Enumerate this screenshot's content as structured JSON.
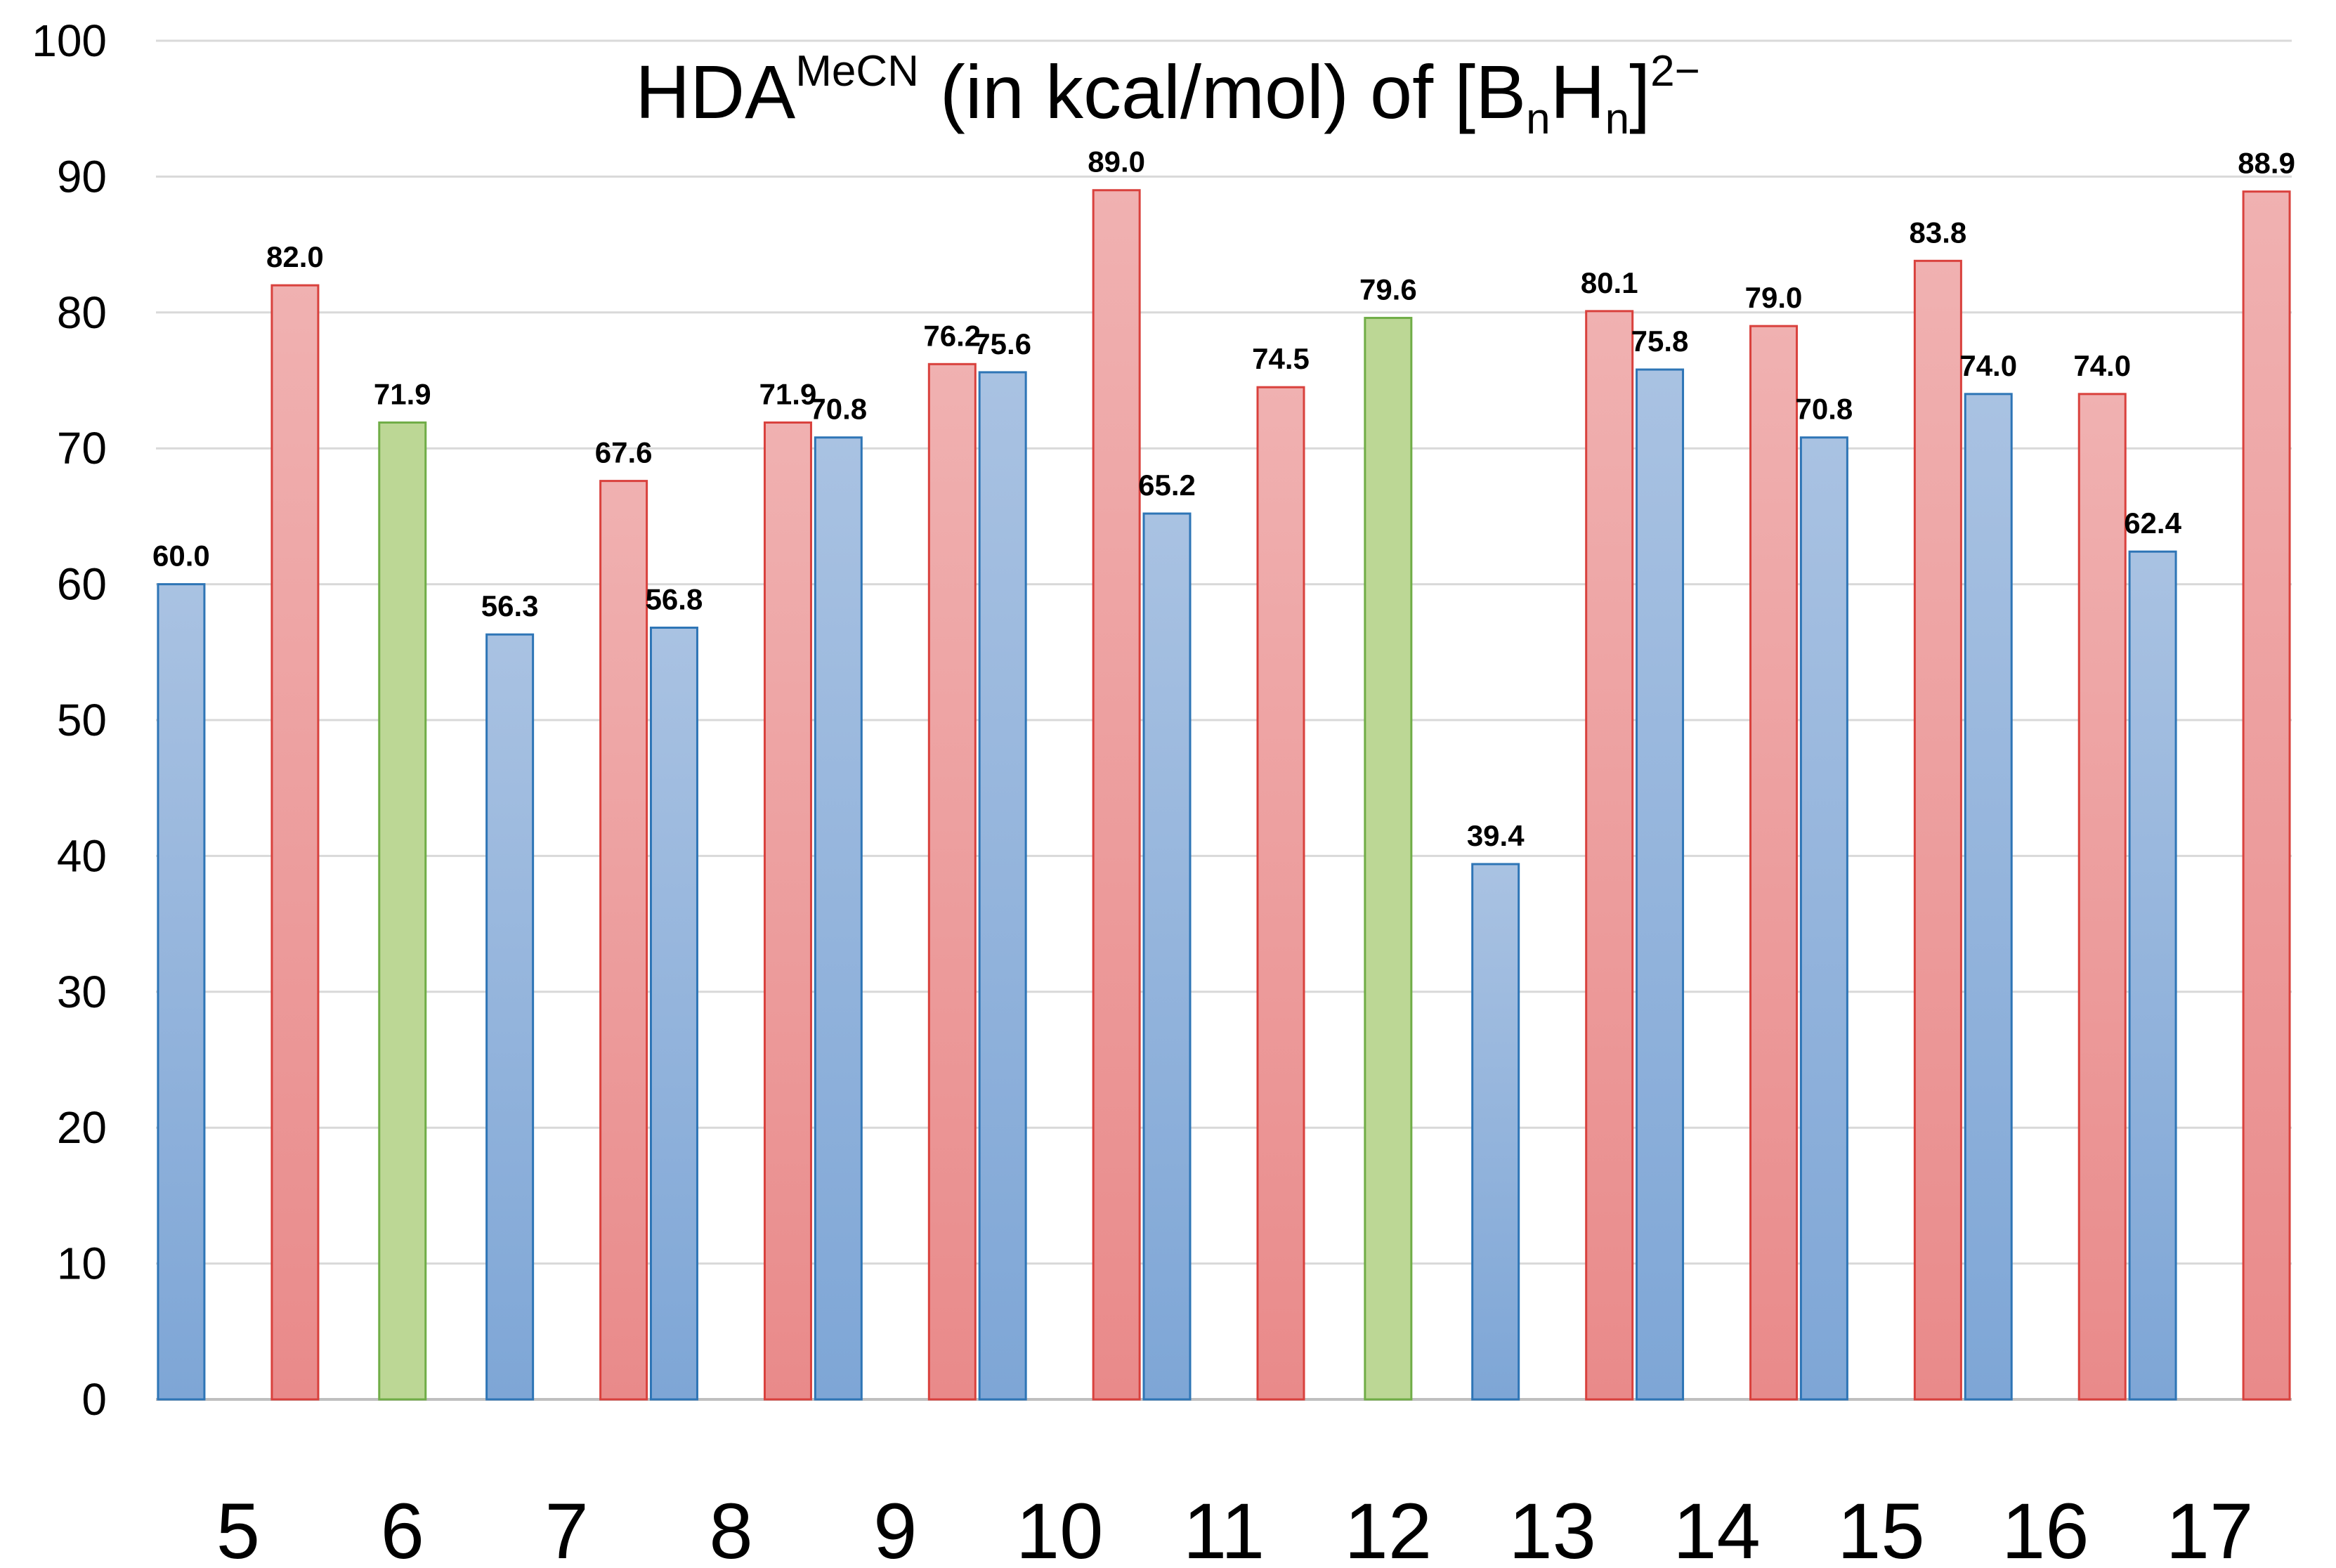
{
  "chart_data": {
    "type": "bar",
    "title": {
      "main": "HDA",
      "superscript": "MeCN",
      "middle": " (in kcal/mol) of [B",
      "sub_n1": "n",
      "h": "H",
      "sub_n2": "n",
      "close": "]",
      "charge": "2−"
    },
    "xlabel": "",
    "ylabel": "",
    "ylim": [
      0,
      100
    ],
    "yticks": [
      0,
      10,
      20,
      30,
      40,
      50,
      60,
      70,
      80,
      90,
      100
    ],
    "grid": true,
    "categories": [
      "5",
      "6",
      "7",
      "8",
      "9",
      "10",
      "11",
      "12",
      "13",
      "14",
      "15",
      "16",
      "17"
    ],
    "series": [
      {
        "name": "blue",
        "values": [
          60.0,
          null,
          56.3,
          56.8,
          70.8,
          75.6,
          65.2,
          null,
          39.4,
          75.8,
          70.8,
          74.0,
          62.4
        ],
        "labels": [
          "60.0",
          null,
          "56.3",
          "56.8",
          "70.8",
          "75.6",
          "65.2",
          null,
          "39.4",
          "75.8",
          "70.8",
          "74.0",
          "62.4"
        ]
      },
      {
        "name": "red",
        "values": [
          82.0,
          null,
          67.6,
          71.9,
          76.2,
          89.0,
          74.5,
          null,
          80.1,
          79.0,
          83.8,
          74.0,
          88.9
        ],
        "labels": [
          "82.0",
          null,
          "67.6",
          "71.9",
          "76.2",
          "89.0",
          "74.5",
          null,
          "80.1",
          "79.0",
          "83.8",
          "74.0",
          "88.9"
        ]
      },
      {
        "name": "green",
        "values": [
          null,
          71.9,
          null,
          null,
          null,
          null,
          null,
          79.6,
          null,
          null,
          null,
          null,
          null
        ],
        "labels": [
          null,
          "71.9",
          null,
          null,
          null,
          null,
          null,
          "79.6",
          null,
          null,
          null,
          null,
          null
        ]
      }
    ],
    "colors": {
      "blue_top": "#a9c2e2",
      "blue_bottom": "#7ea6d6",
      "blue_stroke": "#2e75b6",
      "red_top": "#f0b1b1",
      "red_bottom": "#e98a8a",
      "red_stroke": "#d9413d",
      "green_fill": "#bcd795",
      "green_stroke": "#70ad47",
      "grid": "#d9d9d9",
      "axis": "#bfbfbf"
    }
  }
}
